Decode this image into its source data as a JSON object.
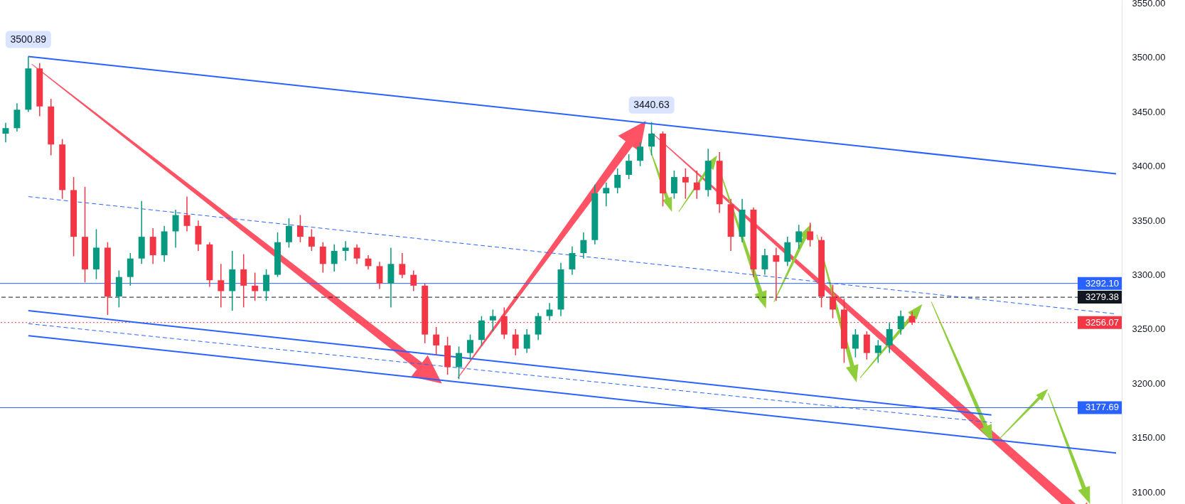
{
  "chart_data": {
    "type": "candlestick",
    "categories": [
      null,
      null,
      null,
      null,
      null,
      null,
      null,
      null,
      null,
      null,
      null,
      null,
      null,
      null,
      null,
      null,
      null,
      null,
      null,
      null,
      null,
      null,
      null,
      null,
      null,
      null,
      null,
      null,
      null,
      null,
      null,
      null,
      null,
      null,
      null,
      null,
      null,
      null,
      null,
      null,
      null,
      null,
      null,
      null,
      null,
      null,
      null,
      null,
      null,
      null,
      null,
      null,
      null,
      null,
      null,
      null,
      null,
      null,
      null,
      null,
      null,
      null,
      null,
      null,
      null,
      null,
      null,
      null,
      null,
      null,
      null,
      null,
      null,
      null,
      null,
      null,
      null,
      null,
      null,
      null,
      null,
      null,
      null,
      null,
      null,
      null,
      null,
      null,
      null,
      null,
      null,
      null,
      null,
      null,
      null,
      null,
      null,
      null,
      null
    ],
    "ohlc": [
      [
        3430,
        3440,
        3422,
        3435
      ],
      [
        3435,
        3458,
        3432,
        3452
      ],
      [
        3452,
        3500.89,
        3450,
        3490
      ],
      [
        3490,
        3495,
        3446,
        3455
      ],
      [
        3455,
        3462,
        3410,
        3420
      ],
      [
        3420,
        3425,
        3370,
        3378
      ],
      [
        3378,
        3390,
        3317,
        3335
      ],
      [
        3335,
        3381,
        3293,
        3305
      ],
      [
        3305,
        3342,
        3296,
        3325
      ],
      [
        3325,
        3330,
        3263,
        3280
      ],
      [
        3280,
        3304,
        3270,
        3298
      ],
      [
        3298,
        3320,
        3290,
        3315
      ],
      [
        3315,
        3368,
        3310,
        3335
      ],
      [
        3335,
        3343,
        3310,
        3318
      ],
      [
        3318,
        3345,
        3312,
        3340
      ],
      [
        3340,
        3360,
        3325,
        3355
      ],
      [
        3355,
        3372,
        3340,
        3345
      ],
      [
        3345,
        3350,
        3322,
        3328
      ],
      [
        3328,
        3330,
        3289,
        3295
      ],
      [
        3295,
        3310,
        3270,
        3285
      ],
      [
        3285,
        3322,
        3267,
        3305
      ],
      [
        3305,
        3319,
        3270,
        3290
      ],
      [
        3290,
        3302,
        3276,
        3285
      ],
      [
        3285,
        3305,
        3276,
        3300
      ],
      [
        3300,
        3339,
        3298,
        3330
      ],
      [
        3330,
        3352,
        3325,
        3345
      ],
      [
        3345,
        3355,
        3330,
        3335
      ],
      [
        3335,
        3342,
        3322,
        3326
      ],
      [
        3326,
        3330,
        3302,
        3310
      ],
      [
        3310,
        3328,
        3303,
        3322
      ],
      [
        3322,
        3331,
        3313,
        3325
      ],
      [
        3325,
        3328,
        3310,
        3315
      ],
      [
        3315,
        3318,
        3305,
        3308
      ],
      [
        3308,
        3312,
        3287,
        3292
      ],
      [
        3292,
        3325,
        3270,
        3310
      ],
      [
        3310,
        3320,
        3297,
        3300
      ],
      [
        3300,
        3304,
        3285,
        3290
      ],
      [
        3290,
        3292,
        3237,
        3245
      ],
      [
        3245,
        3252,
        3226,
        3235
      ],
      [
        3235,
        3243,
        3208,
        3215
      ],
      [
        3215,
        3234,
        3204,
        3228
      ],
      [
        3228,
        3245,
        3222,
        3240
      ],
      [
        3240,
        3262,
        3235,
        3258
      ],
      [
        3258,
        3268,
        3248,
        3262
      ],
      [
        3262,
        3270,
        3241,
        3245
      ],
      [
        3245,
        3250,
        3226,
        3232
      ],
      [
        3232,
        3250,
        3228,
        3245
      ],
      [
        3245,
        3265,
        3240,
        3262
      ],
      [
        3262,
        3274,
        3258,
        3268
      ],
      [
        3268,
        3311,
        3262,
        3305
      ],
      [
        3305,
        3326,
        3300,
        3320
      ],
      [
        3320,
        3339,
        3315,
        3332
      ],
      [
        3332,
        3383,
        3328,
        3375
      ],
      [
        3375,
        3385,
        3363,
        3380
      ],
      [
        3380,
        3398,
        3375,
        3392
      ],
      [
        3392,
        3411,
        3388,
        3405
      ],
      [
        3405,
        3422,
        3400,
        3418
      ],
      [
        3418,
        3440.63,
        3410,
        3430
      ],
      [
        3430,
        3432,
        3363,
        3375
      ],
      [
        3375,
        3396,
        3370,
        3390
      ],
      [
        3390,
        3398,
        3370,
        3385
      ],
      [
        3385,
        3396,
        3370,
        3378
      ],
      [
        3378,
        3416,
        3372,
        3405
      ],
      [
        3405,
        3413,
        3357,
        3365
      ],
      [
        3365,
        3370,
        3322,
        3335
      ],
      [
        3335,
        3370,
        3330,
        3360
      ],
      [
        3360,
        3362,
        3298,
        3305
      ],
      [
        3305,
        3324,
        3300,
        3318
      ],
      [
        3318,
        3325,
        3276,
        3312
      ],
      [
        3312,
        3335,
        3308,
        3330
      ],
      [
        3330,
        3346,
        3324,
        3340
      ],
      [
        3340,
        3348,
        3326,
        3332
      ],
      [
        3332,
        3335,
        3270,
        3280
      ],
      [
        3280,
        3291,
        3260,
        3268
      ],
      [
        3268,
        3278,
        3219,
        3232
      ],
      [
        3232,
        3250,
        3224,
        3245
      ],
      [
        3245,
        3248,
        3222,
        3228
      ],
      [
        3228,
        3240,
        3219,
        3235
      ],
      [
        3235,
        3256,
        3228,
        3250
      ],
      [
        3250,
        3267,
        3245,
        3262
      ],
      [
        3262,
        3266,
        3254,
        3256.07
      ],
      null,
      null,
      null,
      null,
      null,
      null,
      null,
      null,
      null,
      null,
      null,
      null,
      null,
      null,
      null,
      null,
      null,
      null
    ],
    "colors": [
      "#089981",
      "#089981",
      "#089981",
      "#f23645",
      "#f23645",
      "#f23645",
      "#f23645",
      "#f23645",
      "#089981",
      "#f23645",
      "#089981",
      "#089981",
      "#089981",
      "#f23645",
      "#089981",
      "#089981",
      "#f23645",
      "#f23645",
      "#f23645",
      "#f23645",
      "#089981",
      "#f23645",
      "#f23645",
      "#089981",
      "#089981",
      "#089981",
      "#f23645",
      "#f23645",
      "#f23645",
      "#089981",
      "#089981",
      "#f23645",
      "#f23645",
      "#f23645",
      "#089981",
      "#f23645",
      "#f23645",
      "#f23645",
      "#f23645",
      "#f23645",
      "#089981",
      "#089981",
      "#089981",
      "#089981",
      "#f23645",
      "#f23645",
      "#089981",
      "#089981",
      "#089981",
      "#089981",
      "#089981",
      "#089981",
      "#089981",
      "#089981",
      "#089981",
      "#089981",
      "#089981",
      "#089981",
      "#f23645",
      "#089981",
      "#f23645",
      "#f23645",
      "#089981",
      "#f23645",
      "#f23645",
      "#089981",
      "#f23645",
      "#089981",
      "#f23645",
      "#089981",
      "#089981",
      "#f23645",
      "#f23645",
      "#f23645",
      "#f23645",
      "#089981",
      "#f23645",
      "#089981",
      "#089981",
      "#089981",
      "#f23645",
      null,
      null,
      null,
      null,
      null,
      null,
      null,
      null,
      null,
      null,
      null,
      null,
      null,
      null,
      null,
      null,
      null,
      null
    ],
    "ylim": [
      3089,
      3553
    ],
    "yticks": [
      {
        "value": 3100,
        "label": "3100.00"
      },
      {
        "value": 3150,
        "label": "3150.00"
      },
      {
        "value": 3200,
        "label": "3200.00"
      },
      {
        "value": 3250,
        "label": "3250.00"
      },
      {
        "value": 3300,
        "label": "3300.00"
      },
      {
        "value": 3350,
        "label": "3350.00"
      },
      {
        "value": 3400,
        "label": "3400.00"
      },
      {
        "value": 3450,
        "label": "3450.00"
      },
      {
        "value": 3500,
        "label": "3500.00"
      },
      {
        "value": 3550,
        "label": "3550.00"
      }
    ],
    "tick_labels": "y",
    "annotations": [
      {
        "text": "3500.89",
        "y": 3500.89
      },
      {
        "text": "3440.63",
        "y": 3440.63
      }
    ],
    "ref_lines": [
      {
        "axis": "y",
        "value": 3292.1,
        "label": "3292.10",
        "color": "#2962ff"
      },
      {
        "axis": "y",
        "value": 3279.38,
        "label": "3279.38",
        "color": "#131722",
        "line_style": "dashed"
      },
      {
        "axis": "y",
        "value": 3256.07,
        "label": "3256.07",
        "color": "#f23645",
        "line_style": "dotted"
      },
      {
        "axis": "y",
        "value": 3177.69,
        "label": "3177.69",
        "color": "#2962ff"
      }
    ],
    "series": [
      {
        "type": "line",
        "color": "#2962ff",
        "values": [
          null,
          null,
          3501,
          null,
          null,
          null,
          null,
          null,
          null,
          null,
          null,
          null,
          null,
          null,
          null,
          null,
          null,
          null,
          null,
          null,
          null,
          null,
          null,
          null,
          null,
          null,
          null,
          null,
          null,
          null,
          null,
          null,
          null,
          null,
          null,
          null,
          null,
          null,
          null,
          null,
          null,
          null,
          null,
          null,
          null,
          null,
          null,
          null,
          null,
          null,
          null,
          null,
          null,
          null,
          null,
          null,
          null,
          null,
          null,
          null,
          null,
          null,
          null,
          null,
          null,
          null,
          null,
          null,
          null,
          null,
          null,
          null,
          null,
          null,
          null,
          null,
          null,
          null,
          null,
          null,
          null,
          null,
          null,
          null,
          null,
          null,
          null,
          null,
          null,
          null,
          null,
          null,
          null,
          null,
          null,
          null,
          null,
          null,
          3393
        ]
      },
      {
        "type": "line",
        "color": "#2962ff",
        "line_style": "dashed",
        "values": [
          null,
          null,
          3372,
          null,
          null,
          null,
          null,
          null,
          null,
          null,
          null,
          null,
          null,
          null,
          null,
          null,
          null,
          null,
          null,
          null,
          null,
          null,
          null,
          null,
          null,
          null,
          null,
          null,
          null,
          null,
          null,
          null,
          null,
          null,
          null,
          null,
          null,
          null,
          null,
          null,
          null,
          null,
          null,
          null,
          null,
          null,
          null,
          null,
          null,
          null,
          null,
          null,
          null,
          null,
          null,
          null,
          null,
          null,
          null,
          null,
          null,
          null,
          null,
          null,
          null,
          null,
          null,
          null,
          null,
          null,
          null,
          null,
          null,
          null,
          null,
          null,
          null,
          null,
          null,
          null,
          null,
          null,
          null,
          null,
          null,
          null,
          null,
          null,
          null,
          null,
          null,
          null,
          null,
          null,
          null,
          null,
          null,
          null,
          3264
        ]
      },
      {
        "type": "line",
        "color": "#2962ff",
        "values": [
          null,
          null,
          3267,
          null,
          null,
          null,
          null,
          null,
          null,
          null,
          null,
          null,
          null,
          null,
          null,
          null,
          null,
          null,
          null,
          null,
          null,
          null,
          null,
          null,
          null,
          null,
          null,
          null,
          null,
          null,
          null,
          null,
          null,
          null,
          null,
          null,
          null,
          null,
          null,
          null,
          null,
          null,
          null,
          null,
          null,
          null,
          null,
          null,
          null,
          null,
          null,
          null,
          null,
          null,
          null,
          null,
          null,
          null,
          null,
          null,
          null,
          null,
          null,
          null,
          null,
          null,
          null,
          null,
          null,
          null,
          null,
          null,
          null,
          null,
          null,
          null,
          null,
          null,
          null,
          null,
          null,
          null,
          null,
          null,
          null,
          null,
          null,
          3171,
          null,
          null,
          null,
          null,
          null,
          null,
          null,
          null,
          null,
          null,
          null
        ]
      },
      {
        "type": "line",
        "color": "#2962ff",
        "line_style": "dashed",
        "values": [
          null,
          null,
          3255,
          null,
          null,
          null,
          null,
          null,
          null,
          null,
          null,
          null,
          null,
          null,
          null,
          null,
          null,
          null,
          null,
          null,
          null,
          null,
          null,
          null,
          null,
          null,
          null,
          null,
          null,
          null,
          null,
          null,
          null,
          null,
          null,
          null,
          null,
          null,
          null,
          null,
          null,
          null,
          null,
          null,
          null,
          null,
          null,
          null,
          null,
          null,
          null,
          null,
          null,
          null,
          null,
          null,
          null,
          null,
          null,
          null,
          null,
          null,
          null,
          null,
          null,
          null,
          null,
          null,
          null,
          null,
          null,
          null,
          null,
          null,
          null,
          null,
          null,
          null,
          null,
          null,
          null,
          null,
          null,
          null,
          null,
          null,
          null,
          3164,
          null,
          null,
          null,
          null,
          null,
          null,
          null,
          null,
          null,
          null,
          null
        ]
      },
      {
        "type": "line",
        "color": "#2962ff",
        "values": [
          null,
          null,
          3244,
          null,
          null,
          null,
          null,
          null,
          null,
          null,
          null,
          null,
          null,
          null,
          null,
          null,
          null,
          null,
          null,
          null,
          null,
          null,
          null,
          null,
          null,
          null,
          null,
          null,
          null,
          null,
          null,
          null,
          null,
          null,
          null,
          null,
          null,
          null,
          null,
          null,
          null,
          null,
          null,
          null,
          null,
          null,
          null,
          null,
          null,
          null,
          null,
          null,
          null,
          null,
          null,
          null,
          null,
          null,
          null,
          null,
          null,
          null,
          null,
          null,
          null,
          null,
          null,
          null,
          null,
          null,
          null,
          null,
          null,
          null,
          null,
          null,
          null,
          null,
          null,
          null,
          null,
          null,
          null,
          null,
          null,
          null,
          null,
          null,
          null,
          null,
          null,
          null,
          null,
          null,
          null,
          null,
          null,
          null,
          3136
        ]
      }
    ]
  }
}
